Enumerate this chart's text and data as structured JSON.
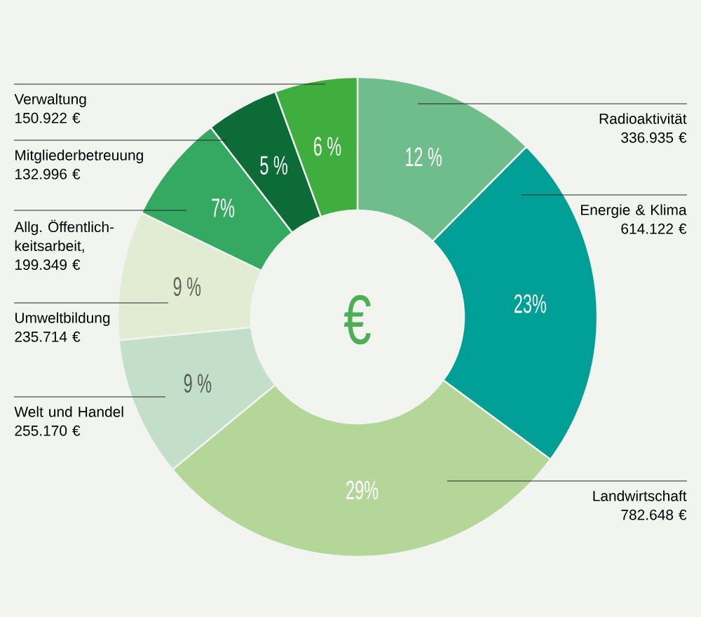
{
  "chart_data": {
    "type": "donut",
    "categories": [
      "Radioaktivität",
      "Energie & Klima",
      "Landwirtschaft",
      "Welt und Handel",
      "Umweltbildung",
      "Allg. Öffentlich-keitsarbeit",
      "Mitgliederbetreuung",
      "Verwaltung"
    ],
    "values": [
      336935,
      614122,
      782648,
      255170,
      235714,
      199349,
      132996,
      150922
    ],
    "value_labels": [
      "336.935 €",
      "614.122 €",
      "782.648 €",
      "255.170 €",
      "235.714 €",
      "199.349 €",
      "132.996 €",
      "150.922 €"
    ],
    "colors": [
      "#6fbd8a",
      "#009f95",
      "#b4d699",
      "#c3dfca",
      "#e2ecd3",
      "#35a962",
      "#0c6b37",
      "#40ae3f"
    ],
    "annotations": [
      "€",
      {
        "text": "12 %",
        "x": "Radioaktivität"
      },
      {
        "text": "23%",
        "x": "Energie & Klima"
      },
      {
        "text": "29%",
        "x": "Landwirtschaft"
      },
      {
        "text": "9 %",
        "x": "Welt und Handel"
      },
      {
        "text": "9 %",
        "x": "Umweltbildung"
      },
      {
        "text": "7%",
        "x": "Allg. Öffentlich-keitsarbeit"
      },
      {
        "text": ",",
        "x": "Allg. Öffentlich-keitsarbeit"
      },
      {
        "text": "5 %",
        "x": "Mitgliederbetreuung"
      },
      {
        "text": "6 %",
        "x": "Verwaltung"
      }
    ]
  }
}
